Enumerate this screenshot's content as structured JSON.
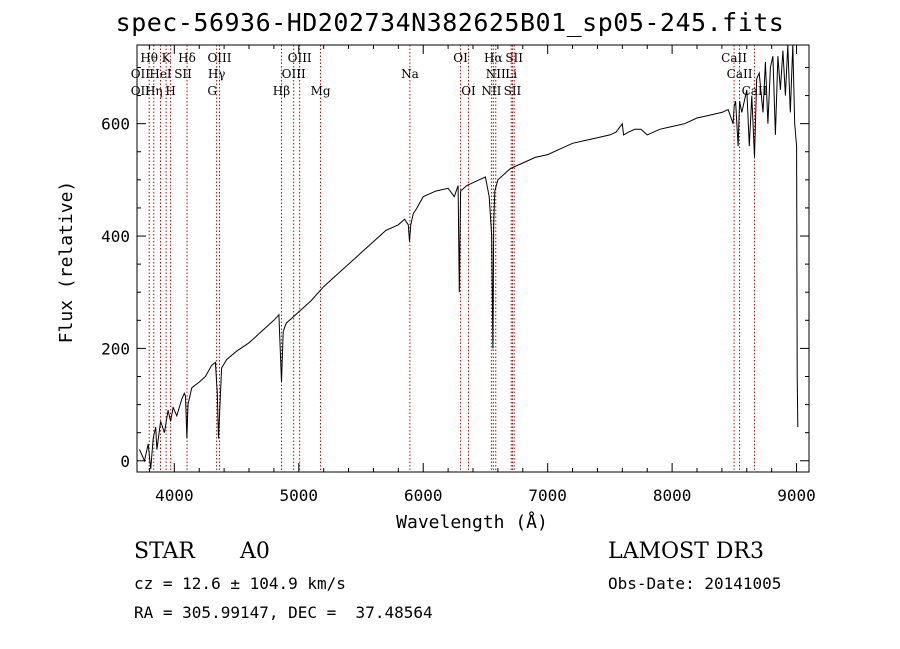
{
  "chart_data": {
    "type": "line",
    "title": "spec-56936-HD202734N382625B01_sp05-245.fits",
    "xlabel": "Wavelength (Å)",
    "ylabel": "Flux (relative)",
    "xlim": [
      3700,
      9100
    ],
    "ylim": [
      -20,
      740
    ],
    "xticks": [
      4000,
      5000,
      6000,
      7000,
      8000,
      9000
    ],
    "yticks": [
      0,
      200,
      400,
      600
    ],
    "series": [
      {
        "name": "flux",
        "x": [
          3720,
          3760,
          3790,
          3810,
          3830,
          3850,
          3860,
          3890,
          3920,
          3950,
          3970,
          3990,
          4020,
          4060,
          4080,
          4090,
          4101,
          4110,
          4140,
          4200,
          4250,
          4300,
          4330,
          4345,
          4355,
          4380,
          4420,
          4500,
          4600,
          4650,
          4700,
          4800,
          4840,
          4861,
          4875,
          4900,
          4950,
          5000,
          5100,
          5200,
          5300,
          5400,
          5500,
          5600,
          5700,
          5800,
          5850,
          5880,
          5890,
          5900,
          5920,
          5950,
          6000,
          6100,
          6200,
          6250,
          6280,
          6290,
          6300,
          6350,
          6400,
          6450,
          6500,
          6530,
          6550,
          6560,
          6563,
          6566,
          6575,
          6600,
          6650,
          6700,
          6800,
          6900,
          7000,
          7100,
          7200,
          7300,
          7400,
          7500,
          7550,
          7600,
          7610,
          7650,
          7700,
          7750,
          7800,
          7900,
          8000,
          8100,
          8200,
          8300,
          8400,
          8450,
          8490,
          8498,
          8510,
          8530,
          8542,
          8560,
          8600,
          8620,
          8640,
          8662,
          8680,
          8700,
          8730,
          8750,
          8770,
          8790,
          8810,
          8830,
          8850,
          8870,
          8890,
          8910,
          8930,
          8950,
          8970,
          8985,
          9000,
          9005,
          9010
        ],
        "y": [
          20,
          0,
          30,
          -15,
          40,
          60,
          20,
          70,
          50,
          90,
          70,
          95,
          80,
          110,
          120,
          115,
          40,
          100,
          130,
          140,
          150,
          170,
          175,
          120,
          40,
          165,
          180,
          195,
          210,
          220,
          230,
          250,
          260,
          140,
          230,
          245,
          255,
          265,
          285,
          310,
          330,
          350,
          370,
          390,
          410,
          420,
          430,
          420,
          390,
          420,
          440,
          450,
          470,
          480,
          485,
          470,
          490,
          300,
          480,
          490,
          495,
          500,
          505,
          470,
          400,
          200,
          300,
          420,
          480,
          500,
          510,
          520,
          530,
          540,
          545,
          555,
          565,
          570,
          575,
          580,
          585,
          600,
          580,
          585,
          590,
          590,
          580,
          590,
          595,
          600,
          610,
          615,
          620,
          625,
          600,
          630,
          640,
          560,
          640,
          620,
          660,
          560,
          650,
          540,
          680,
          690,
          620,
          710,
          600,
          700,
          720,
          580,
          720,
          660,
          730,
          650,
          740,
          620,
          760,
          600,
          560,
          150,
          60
        ],
        "line_color": "#000000"
      }
    ],
    "markers": {
      "color": "#c00000",
      "lines": [
        3798,
        3835,
        3889,
        3934,
        3970,
        4102,
        4340,
        4363,
        4861,
        4959,
        5007,
        5175,
        5893,
        6300,
        6364,
        6548,
        6563,
        6583,
        6707,
        6717,
        6731,
        8498,
        8542,
        8662
      ],
      "labels": [
        {
          "text": "Hθ",
          "wl": 3798,
          "row": 0
        },
        {
          "text": "K",
          "wl": 3934,
          "row": 0
        },
        {
          "text": "Hδ",
          "wl": 4102,
          "row": 0
        },
        {
          "text": "OIII",
          "wl": 4363,
          "row": 0
        },
        {
          "text": "OIII",
          "wl": 5007,
          "row": 0
        },
        {
          "text": "OI",
          "wl": 6300,
          "row": 0
        },
        {
          "text": "Hα",
          "wl": 6563,
          "row": 0
        },
        {
          "text": "SII",
          "wl": 6731,
          "row": 0
        },
        {
          "text": "CaII",
          "wl": 8498,
          "row": 0
        },
        {
          "text": "OII",
          "wl": 3727,
          "row": 1
        },
        {
          "text": "HeI",
          "wl": 3889,
          "row": 1
        },
        {
          "text": "SII",
          "wl": 4070,
          "row": 1
        },
        {
          "text": "Hγ",
          "wl": 4340,
          "row": 1
        },
        {
          "text": "OIII",
          "wl": 4959,
          "row": 1
        },
        {
          "text": "Na",
          "wl": 5893,
          "row": 1
        },
        {
          "text": "NII",
          "wl": 6583,
          "row": 1
        },
        {
          "text": "Li",
          "wl": 6707,
          "row": 1
        },
        {
          "text": "CaII",
          "wl": 8542,
          "row": 1
        },
        {
          "text": "OII",
          "wl": 3727,
          "row": 2
        },
        {
          "text": "Hη",
          "wl": 3835,
          "row": 2
        },
        {
          "text": "H",
          "wl": 3970,
          "row": 2
        },
        {
          "text": "G",
          "wl": 4304,
          "row": 2
        },
        {
          "text": "Hβ",
          "wl": 4861,
          "row": 2
        },
        {
          "text": "Mg",
          "wl": 5175,
          "row": 2
        },
        {
          "text": "OI",
          "wl": 6364,
          "row": 2
        },
        {
          "text": "NII",
          "wl": 6548,
          "row": 2
        },
        {
          "text": "SII",
          "wl": 6717,
          "row": 2
        },
        {
          "text": "CaII",
          "wl": 8662,
          "row": 2
        }
      ]
    }
  },
  "info": {
    "class_type": "STAR",
    "subclass": "A0",
    "survey": "LAMOST DR3",
    "cz": "cz = 12.6 ± 104.9 km/s",
    "obs_date": "Obs-Date: 20141005",
    "radec": "RA = 305.99147, DEC =  37.48564"
  }
}
